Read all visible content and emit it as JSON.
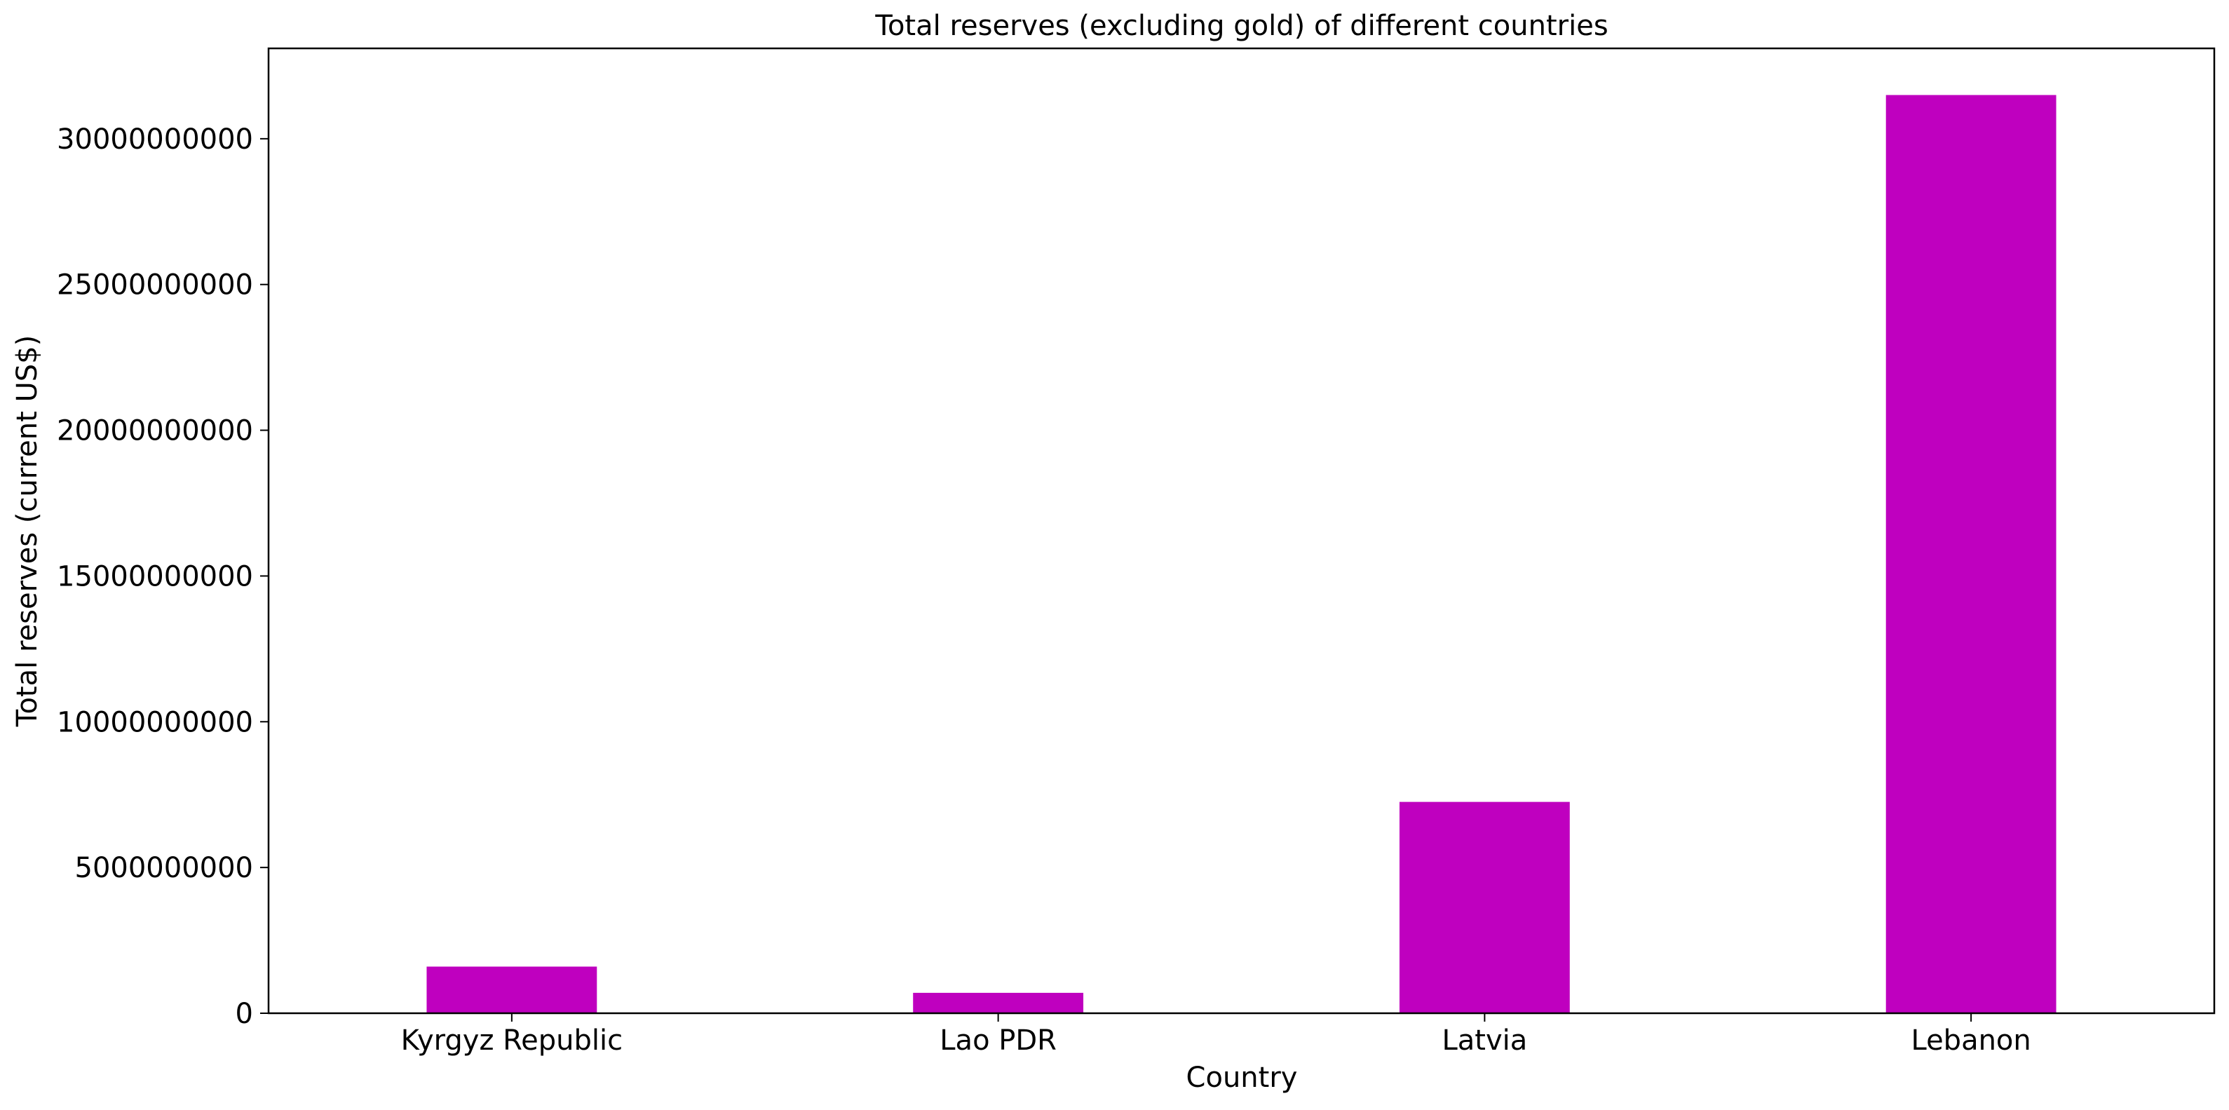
{
  "chart_data": {
    "type": "bar",
    "title": "Total reserves (excluding gold) of different countries",
    "xlabel": "Country",
    "ylabel": "Total reserves (current US$)",
    "categories": [
      "Kyrgyz Republic",
      "Lao PDR",
      "Latvia",
      "Lebanon"
    ],
    "values": [
      1600000000,
      700000000,
      7250000000,
      31500000000
    ],
    "ylim": [
      0,
      33100000000
    ],
    "yticks": [
      0,
      5000000000,
      10000000000,
      15000000000,
      20000000000,
      25000000000,
      30000000000
    ],
    "ytick_labels": [
      "0",
      "5000000000",
      "10000000000",
      "15000000000",
      "20000000000",
      "25000000000",
      "30000000000"
    ],
    "bar_color": "#bf00bf",
    "grid": false,
    "legend": "none"
  }
}
